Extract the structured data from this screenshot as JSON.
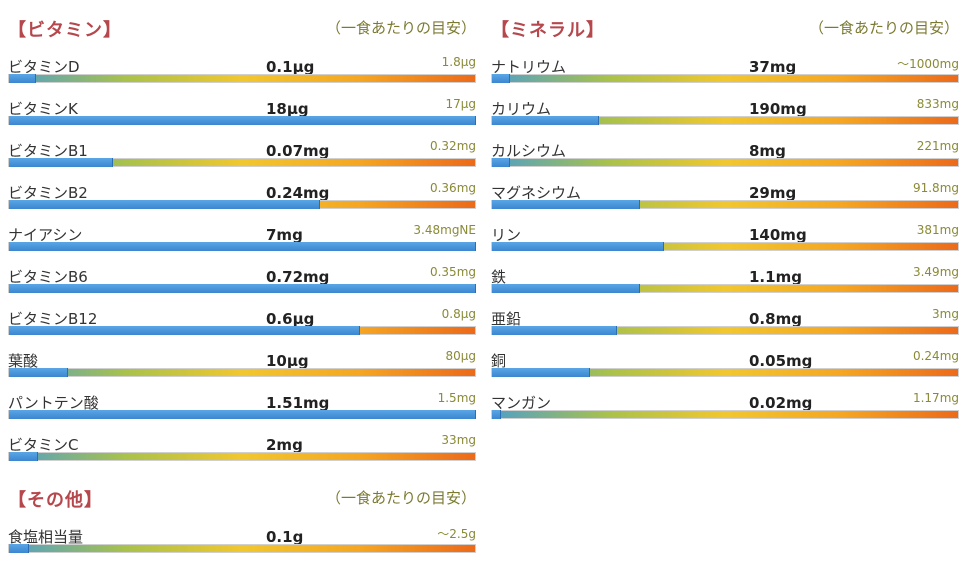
{
  "vitamins": {
    "title": "【ビタミン】",
    "note": "（一食あたりの目安）",
    "items": [
      {
        "name": "ビタミンD",
        "amount": "0.1μg",
        "target": "1.8μg",
        "fill": 0.055
      },
      {
        "name": "ビタミンK",
        "amount": "18μg",
        "target": "17μg",
        "fill": 1.0
      },
      {
        "name": "ビタミンB1",
        "amount": "0.07mg",
        "target": "0.32mg",
        "fill": 0.22
      },
      {
        "name": "ビタミンB2",
        "amount": "0.24mg",
        "target": "0.36mg",
        "fill": 0.665
      },
      {
        "name": "ナイアシン",
        "amount": "7mg",
        "target": "3.48mgNE",
        "fill": 1.0
      },
      {
        "name": "ビタミンB6",
        "amount": "0.72mg",
        "target": "0.35mg",
        "fill": 1.0
      },
      {
        "name": "ビタミンB12",
        "amount": "0.6μg",
        "target": "0.8μg",
        "fill": 0.75
      },
      {
        "name": "葉酸",
        "amount": "10μg",
        "target": "80μg",
        "fill": 0.125
      },
      {
        "name": "パントテン酸",
        "amount": "1.51mg",
        "target": "1.5mg",
        "fill": 1.0
      },
      {
        "name": "ビタミンC",
        "amount": "2mg",
        "target": "33mg",
        "fill": 0.06
      }
    ]
  },
  "minerals": {
    "title": "【ミネラル】",
    "note": "（一食あたりの目安）",
    "items": [
      {
        "name": "ナトリウム",
        "amount": "37mg",
        "target": "～1000mg",
        "fill": 0.037
      },
      {
        "name": "カリウム",
        "amount": "190mg",
        "target": "833mg",
        "fill": 0.228
      },
      {
        "name": "カルシウム",
        "amount": "8mg",
        "target": "221mg",
        "fill": 0.036
      },
      {
        "name": "マグネシウム",
        "amount": "29mg",
        "target": "91.8mg",
        "fill": 0.316
      },
      {
        "name": "リン",
        "amount": "140mg",
        "target": "381mg",
        "fill": 0.367
      },
      {
        "name": "鉄",
        "amount": "1.1mg",
        "target": "3.49mg",
        "fill": 0.315
      },
      {
        "name": "亜鉛",
        "amount": "0.8mg",
        "target": "3mg",
        "fill": 0.267
      },
      {
        "name": "銅",
        "amount": "0.05mg",
        "target": "0.24mg",
        "fill": 0.208
      },
      {
        "name": "マンガン",
        "amount": "0.02mg",
        "target": "1.17mg",
        "fill": 0.017
      }
    ]
  },
  "other": {
    "title": "【その他】",
    "note": "（一食あたりの目安）",
    "items": [
      {
        "name": "食塩相当量",
        "amount": "0.1g",
        "target": "～2.5g",
        "fill": 0.04
      }
    ]
  }
}
